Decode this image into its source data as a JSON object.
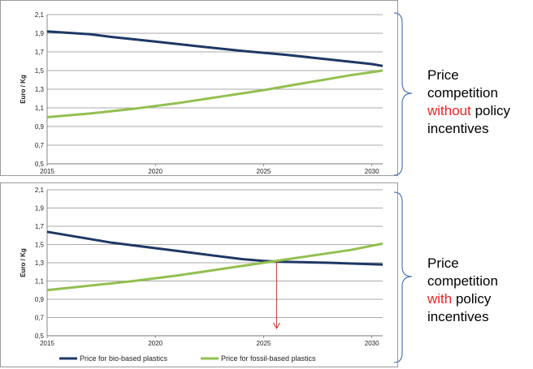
{
  "chart_data": [
    {
      "type": "line",
      "ylabel": "Euro / Kg",
      "xlabel": "",
      "x_ticks": [
        "2015",
        "2020",
        "2025",
        "2030"
      ],
      "y_ticks": [
        "0,5",
        "0,7",
        "0,9",
        "1,1",
        "1,3",
        "1,5",
        "1,7",
        "1,9",
        "2,1"
      ],
      "xlim": [
        2015,
        2030.5
      ],
      "ylim": [
        0.5,
        2.1
      ],
      "grid": "horizontal",
      "legend": "none",
      "series": [
        {
          "name": "Price for bio-based plastics",
          "color": "#1f3864",
          "points": [
            [
              2015,
              1.92
            ],
            [
              2017,
              1.89
            ],
            [
              2018,
              1.86
            ],
            [
              2020,
              1.81
            ],
            [
              2022,
              1.76
            ],
            [
              2024,
              1.71
            ],
            [
              2026,
              1.67
            ],
            [
              2028,
              1.62
            ],
            [
              2030,
              1.57
            ],
            [
              2030.5,
              1.55
            ]
          ]
        },
        {
          "name": "Price for fossil-based plastics",
          "color": "#92c050",
          "points": [
            [
              2015,
              1.0
            ],
            [
              2017,
              1.04
            ],
            [
              2019,
              1.09
            ],
            [
              2021,
              1.15
            ],
            [
              2023,
              1.22
            ],
            [
              2025,
              1.29
            ],
            [
              2027,
              1.37
            ],
            [
              2029,
              1.45
            ],
            [
              2030.5,
              1.5
            ]
          ]
        }
      ]
    },
    {
      "type": "line",
      "ylabel": "Euro / Kg",
      "xlabel": "",
      "x_ticks": [
        "2015",
        "2020",
        "2025",
        "2030"
      ],
      "y_ticks": [
        "0,5",
        "0,7",
        "0,9",
        "1,1",
        "1,3",
        "1,5",
        "1,7",
        "1,9",
        "2,1"
      ],
      "xlim": [
        2015,
        2030.5
      ],
      "ylim": [
        0.5,
        2.1
      ],
      "grid": "horizontal",
      "legend": "bottom",
      "annotation": {
        "type": "arrow",
        "x": 2025.6,
        "y_from": 1.31,
        "y_to": 0.58,
        "color": "#c0392b"
      },
      "series": [
        {
          "name": "Price for bio-based plastics",
          "color": "#1f3864",
          "points": [
            [
              2015,
              1.64
            ],
            [
              2016,
              1.6
            ],
            [
              2018,
              1.52
            ],
            [
              2020,
              1.46
            ],
            [
              2022,
              1.4
            ],
            [
              2024,
              1.34
            ],
            [
              2025,
              1.32
            ],
            [
              2026,
              1.31
            ],
            [
              2028,
              1.3
            ],
            [
              2030.5,
              1.28
            ]
          ]
        },
        {
          "name": "Price for fossil-based plastics",
          "color": "#92c050",
          "points": [
            [
              2015,
              1.0
            ],
            [
              2017,
              1.05
            ],
            [
              2019,
              1.1
            ],
            [
              2021,
              1.16
            ],
            [
              2023,
              1.23
            ],
            [
              2025,
              1.3
            ],
            [
              2027,
              1.37
            ],
            [
              2029,
              1.44
            ],
            [
              2030.5,
              1.51
            ]
          ]
        }
      ]
    }
  ],
  "captions": [
    {
      "line1": "Price",
      "line2": "competition",
      "highlight": "without",
      "rest": " policy",
      "line4": "incentives"
    },
    {
      "line1": "Price",
      "line2": "competition",
      "highlight": "with",
      "rest": " policy",
      "line4": "incentives"
    }
  ],
  "legend": {
    "bio": "Price for bio-based plastics",
    "fossil": "Price for fossil-based plastics"
  }
}
